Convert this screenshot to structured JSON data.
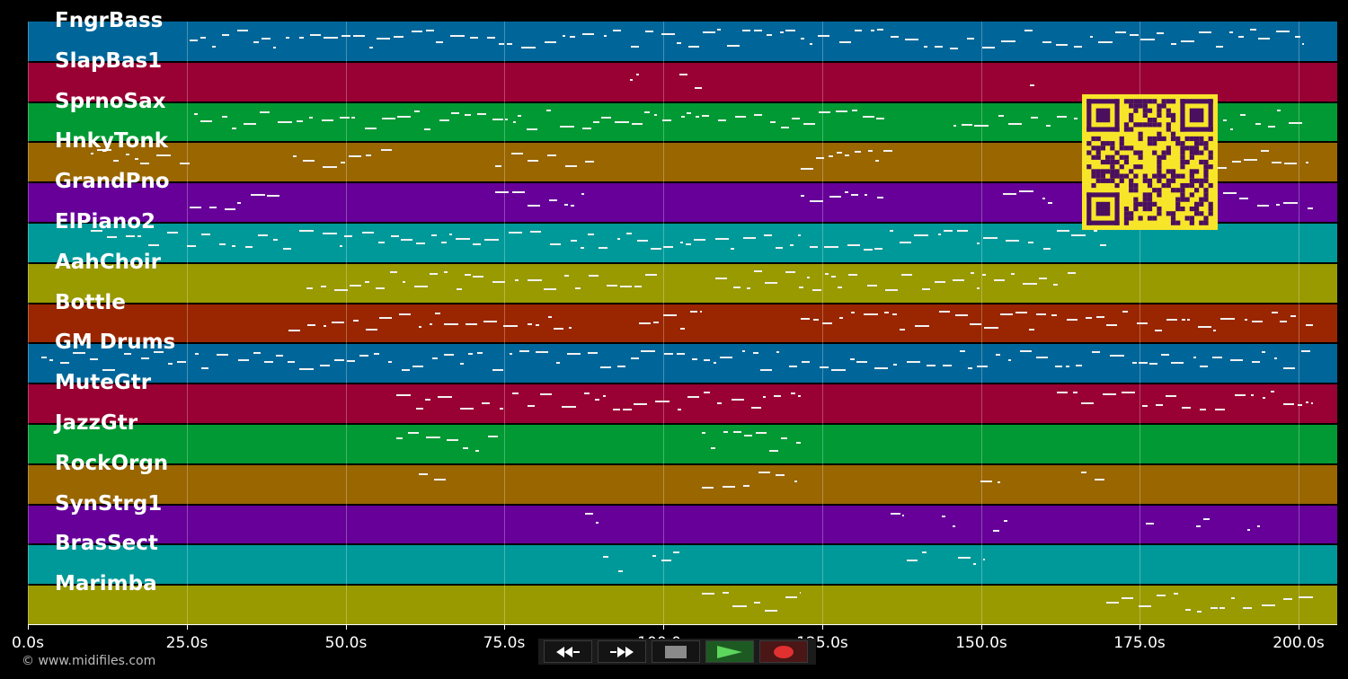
{
  "tracks": [
    {
      "name": "FngrBass",
      "color": "#006699"
    },
    {
      "name": "SlapBas1",
      "color": "#990033"
    },
    {
      "name": "SprnoSax",
      "color": "#009933"
    },
    {
      "name": "HnkyTonk",
      "color": "#996600"
    },
    {
      "name": "GrandPno",
      "color": "#660099"
    },
    {
      "name": "ElPiano2",
      "color": "#009999"
    },
    {
      "name": "AahChoir",
      "color": "#999900"
    },
    {
      "name": "Bottle",
      "color": "#992600"
    },
    {
      "name": "GM Drums",
      "color": "#006699"
    },
    {
      "name": "MuteGtr",
      "color": "#990033"
    },
    {
      "name": "JazzGtr",
      "color": "#009933"
    },
    {
      "name": "RockOrgn",
      "color": "#996600"
    },
    {
      "name": "SynStrg1",
      "color": "#660099"
    },
    {
      "name": "BrasSect",
      "color": "#009999"
    },
    {
      "name": "Marimba",
      "color": "#999900"
    }
  ],
  "timeline": {
    "ticks": [
      "0.0s",
      "25.0s",
      "50.0s",
      "75.0s",
      "100.0s",
      "125.0s",
      "150.0s",
      "175.0s",
      "200.0s"
    ],
    "tick_values": [
      0,
      25,
      50,
      75,
      100,
      125,
      150,
      175,
      200
    ],
    "max_seconds": 206
  },
  "copyright": "© www.midifiles.com",
  "controls": {
    "rewind_icon": "rewind-icon",
    "forward_icon": "fast-forward-icon",
    "stop_icon": "stop-icon",
    "play_icon": "play-icon",
    "record_icon": "record-icon"
  },
  "qr_icon": "qr-code-icon"
}
